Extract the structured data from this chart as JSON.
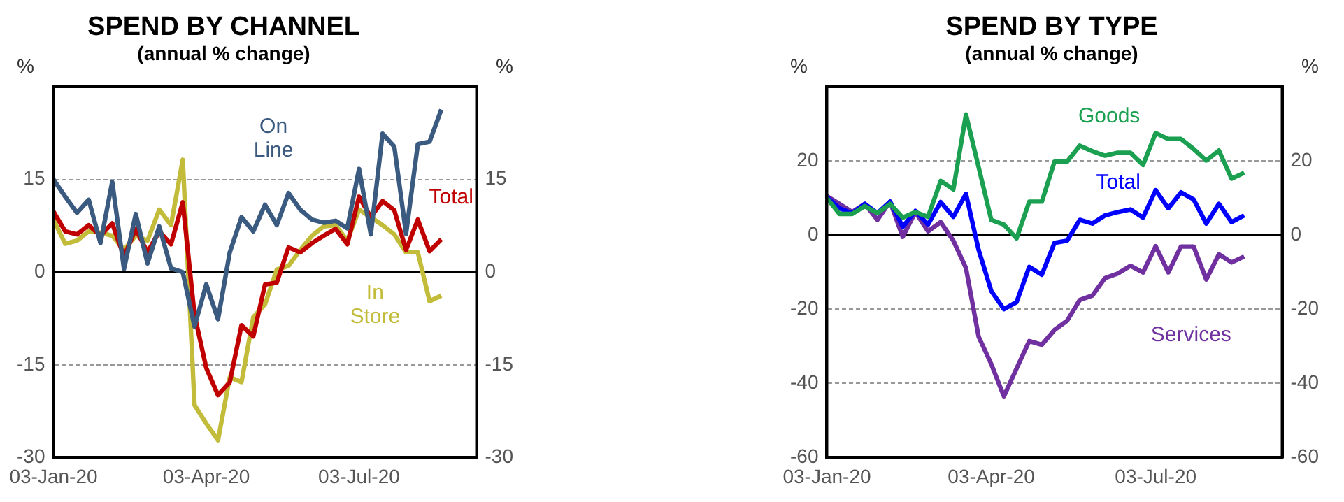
{
  "chart_data": [
    {
      "type": "line",
      "title": "SPEND BY CHANNEL",
      "subtitle": "(annual % change)",
      "ylabel": "%",
      "y2label": "%",
      "categories": [
        "03-Jan-20",
        null,
        null,
        null,
        null,
        null,
        null,
        null,
        null,
        null,
        null,
        null,
        null,
        "03-Apr-20",
        null,
        null,
        null,
        null,
        null,
        null,
        null,
        null,
        null,
        null,
        null,
        null,
        "03-Jul-20",
        null,
        null,
        null,
        null,
        null,
        null,
        null,
        null,
        null,
        null
      ],
      "series": [
        {
          "name": "On Line",
          "color": "#3a5a80",
          "values": [
            15,
            12.2,
            9.6,
            11.7,
            4.7,
            14.6,
            0.5,
            9.4,
            1.4,
            7.4,
            0.6,
            0,
            -8.8,
            -2,
            -7.6,
            3.2,
            8.9,
            6.6,
            10.9,
            7.6,
            12.8,
            10.1,
            8.5,
            8,
            8.3,
            7.1,
            16.7,
            6.1,
            22.4,
            20.3,
            6.2,
            20.7,
            21.1,
            26.3,
            null,
            null,
            null
          ]
        },
        {
          "name": "Total",
          "color": "#c00000",
          "values": [
            9.8,
            6.6,
            6.1,
            7.6,
            5.9,
            7.9,
            2.5,
            7,
            3.2,
            6.6,
            4.5,
            11.3,
            -6.9,
            -15.5,
            -19.9,
            -17.8,
            -8.6,
            -10.4,
            -2,
            -1.7,
            4,
            3.2,
            4.7,
            5.9,
            7,
            4.5,
            12.2,
            8.9,
            11.5,
            10,
            3.6,
            8.5,
            3.4,
            5.3,
            null,
            null,
            null
          ]
        },
        {
          "name": "In Store",
          "color": "#c2bc3a",
          "values": [
            8.5,
            4.6,
            5.1,
            6.6,
            6.4,
            5.9,
            3.6,
            5.9,
            5.1,
            10.1,
            7.6,
            18.2,
            -21.5,
            -24.5,
            -27.2,
            -17,
            -17.8,
            -7.3,
            -5.2,
            0.4,
            1,
            3.6,
            5.9,
            7.4,
            7.6,
            5.1,
            10.1,
            8.9,
            7.6,
            6.1,
            3.2,
            3.2,
            -4.7,
            -3.8,
            null,
            null,
            null
          ]
        }
      ],
      "ylim": [
        -30,
        30
      ],
      "yticks": [
        -30,
        -15,
        0,
        15
      ],
      "y2lim": [
        -30,
        30
      ],
      "y2ticks": [
        -30,
        -15,
        0,
        15
      ],
      "grid": "y",
      "legend": false,
      "marker": "none",
      "line_style": "solid"
    },
    {
      "type": "line",
      "title": "SPEND BY TYPE",
      "subtitle": "(annual % change)",
      "ylabel": "%",
      "y2label": "%",
      "categories": [
        "03-Jan-20",
        null,
        null,
        null,
        null,
        null,
        null,
        null,
        null,
        null,
        null,
        null,
        null,
        "03-Apr-20",
        null,
        null,
        null,
        null,
        null,
        null,
        null,
        null,
        null,
        null,
        null,
        null,
        "03-Jul-20",
        null,
        null,
        null,
        null,
        null,
        null,
        null,
        null,
        null,
        null
      ],
      "series": [
        {
          "name": "Goods",
          "color": "#1aa050",
          "values": [
            10,
            5.7,
            5.7,
            7.8,
            5.9,
            8.4,
            4.7,
            6.2,
            4.9,
            14.6,
            12.3,
            32.5,
            18.3,
            4.1,
            2.8,
            -0.9,
            9,
            9,
            19.8,
            19.8,
            24.1,
            22.6,
            21.4,
            22.2,
            22.2,
            18.9,
            27.5,
            25.9,
            25.9,
            23.2,
            20.1,
            22.8,
            15.2,
            16.8,
            null,
            null,
            null
          ]
        },
        {
          "name": "Total",
          "color": "#0000ff",
          "values": [
            10.2,
            7.2,
            5.9,
            8.4,
            5.9,
            9,
            2.2,
            6.5,
            2.8,
            8.9,
            4.9,
            11.1,
            -4,
            -15.1,
            -20,
            -18.1,
            -8.6,
            -10.7,
            -2.1,
            -1.5,
            4.1,
            3.1,
            5.3,
            6.2,
            6.9,
            4.7,
            12.1,
            7.2,
            11.5,
            9.6,
            3.1,
            8.4,
            3.5,
            5.3,
            null,
            null,
            null
          ]
        },
        {
          "name": "Services",
          "color": "#7030a0",
          "values": [
            10.5,
            8.4,
            6.2,
            8.4,
            4.1,
            9,
            -0.5,
            6.2,
            1,
            3.5,
            -1.5,
            -8.9,
            -27.4,
            -34.8,
            -43.5,
            -36,
            -28.6,
            -29.6,
            -25.6,
            -23.1,
            -17.5,
            -16.3,
            -11.6,
            -10.4,
            -8.3,
            -10.1,
            -3,
            -10.1,
            -3.1,
            -3.1,
            -12,
            -5.2,
            -7.4,
            -5.8,
            null,
            null,
            null
          ]
        }
      ],
      "ylim": [
        -60,
        40
      ],
      "yticks": [
        -60,
        -40,
        -20,
        0,
        20
      ],
      "y2lim": [
        -60,
        40
      ],
      "y2ticks": [
        -60,
        -40,
        -20,
        0,
        20
      ],
      "grid": "y",
      "legend": false,
      "marker": "none",
      "line_style": "solid"
    }
  ]
}
